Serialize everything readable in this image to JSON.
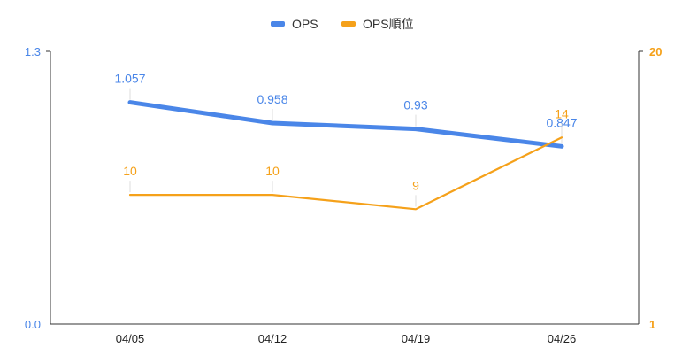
{
  "chart_data": {
    "type": "line",
    "categories": [
      "04/05",
      "04/12",
      "04/19",
      "04/26"
    ],
    "series": [
      {
        "name": "OPS",
        "axis": "left",
        "color": "#4a86e8",
        "values": [
          1.057,
          0.958,
          0.93,
          0.847
        ],
        "labels": [
          "1.057",
          "0.958",
          "0.93",
          "0.847"
        ]
      },
      {
        "name": "OPS順位",
        "axis": "right",
        "color": "#f5a11a",
        "values": [
          10,
          10,
          9,
          14
        ],
        "labels": [
          "10",
          "10",
          "9",
          "14"
        ]
      }
    ],
    "left_axis": {
      "min": 0.0,
      "max": 1.3,
      "ticks": [
        "1.3",
        "0.0"
      ],
      "color": "#4a86e8"
    },
    "right_axis": {
      "min": 1,
      "max": 20,
      "ticks": [
        "20",
        "1"
      ],
      "color": "#f5a11a"
    },
    "legend": {
      "position": "top"
    },
    "grid": false
  }
}
